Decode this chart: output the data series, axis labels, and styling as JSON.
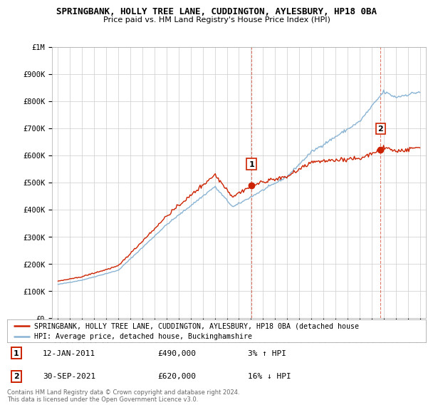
{
  "title": "SPRINGBANK, HOLLY TREE LANE, CUDDINGTON, AYLESBURY, HP18 0BA",
  "subtitle": "Price paid vs. HM Land Registry's House Price Index (HPI)",
  "hpi_color": "#8ab4d4",
  "price_color": "#cc2200",
  "dashed_color": "#cc2200",
  "background_color": "#ffffff",
  "grid_color": "#cccccc",
  "ylim": [
    0,
    1000000
  ],
  "yticks": [
    0,
    100000,
    200000,
    300000,
    400000,
    500000,
    600000,
    700000,
    800000,
    900000,
    1000000
  ],
  "ytick_labels": [
    "£0",
    "£100K",
    "£200K",
    "£300K",
    "£400K",
    "£500K",
    "£600K",
    "£700K",
    "£800K",
    "£900K",
    "£1M"
  ],
  "xlim_start": 1994.5,
  "xlim_end": 2025.5,
  "sale1_x": 2011.04,
  "sale1_y": 490000,
  "sale2_x": 2021.75,
  "sale2_y": 620000,
  "legend_line1": "SPRINGBANK, HOLLY TREE LANE, CUDDINGTON, AYLESBURY, HP18 0BA (detached house",
  "legend_line2": "HPI: Average price, detached house, Buckinghamshire",
  "annotation1_date": "12-JAN-2011",
  "annotation1_price": "£490,000",
  "annotation1_pct": "3% ↑ HPI",
  "annotation2_date": "30-SEP-2021",
  "annotation2_price": "£620,000",
  "annotation2_pct": "16% ↓ HPI",
  "footer": "Contains HM Land Registry data © Crown copyright and database right 2024.\nThis data is licensed under the Open Government Licence v3.0."
}
